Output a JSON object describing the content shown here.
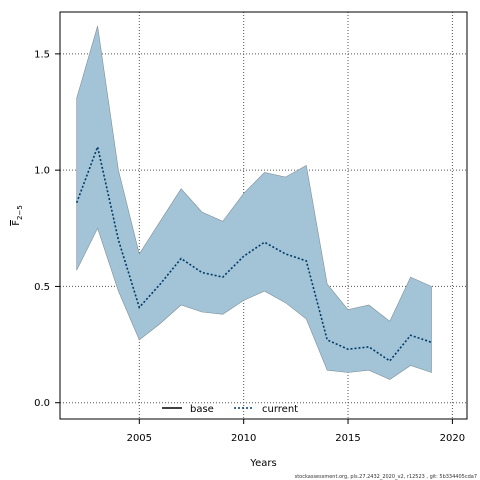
{
  "chart_data": {
    "type": "line",
    "title": "",
    "xlabel": "Years",
    "ylabel": "F",
    "ylabel_subscript": "2−5",
    "xlim": [
      2001.2,
      2020.7
    ],
    "ylim": [
      -0.07,
      1.68
    ],
    "xticks": [
      2005,
      2010,
      2015,
      2020
    ],
    "yticks": [
      0.0,
      0.5,
      1.0,
      1.5
    ],
    "xtick_labels": [
      "2005",
      "2010",
      "2015",
      "2020"
    ],
    "ytick_labels": [
      "0.0",
      "0.5",
      "1.0",
      "1.5"
    ],
    "grid": true,
    "legend_position": "bottom-center",
    "band": {
      "color": "#a3c4d6",
      "x": [
        2002,
        2003,
        2004,
        2005,
        2006,
        2007,
        2008,
        2009,
        2010,
        2011,
        2012,
        2013,
        2014,
        2015,
        2016,
        2017,
        2018,
        2019
      ],
      "upper": [
        1.31,
        1.62,
        1.0,
        0.64,
        0.78,
        0.92,
        0.82,
        0.78,
        0.9,
        0.99,
        0.97,
        1.02,
        0.51,
        0.4,
        0.42,
        0.35,
        0.54,
        0.5
      ],
      "lower": [
        0.57,
        0.75,
        0.48,
        0.27,
        0.34,
        0.42,
        0.39,
        0.38,
        0.44,
        0.48,
        0.43,
        0.36,
        0.14,
        0.13,
        0.14,
        0.1,
        0.16,
        0.13
      ]
    },
    "series": [
      {
        "name": "base",
        "color": "#000000",
        "style": "solid",
        "x": [],
        "values": []
      },
      {
        "name": "current",
        "color": "#003a6a",
        "style": "dotted",
        "x": [
          2002,
          2003,
          2004,
          2005,
          2006,
          2007,
          2008,
          2009,
          2010,
          2011,
          2012,
          2013,
          2014,
          2015,
          2016,
          2017,
          2018,
          2019
        ],
        "values": [
          0.86,
          1.1,
          0.7,
          0.41,
          0.51,
          0.62,
          0.56,
          0.54,
          0.63,
          0.69,
          0.64,
          0.61,
          0.27,
          0.23,
          0.24,
          0.18,
          0.29,
          0.26
        ]
      }
    ]
  },
  "footer": "stockassessment.org, pls.27.2432_2020_v2, r12523 , git: 5b334405cda7"
}
